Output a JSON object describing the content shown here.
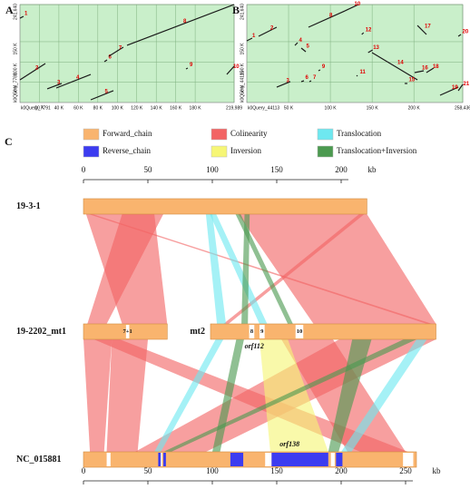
{
  "panels": [
    {
      "label": "A",
      "x_label": "k0Query_7791",
      "y_label": "k0Query_7788",
      "xlim": [
        0,
        219989
      ],
      "ylim": [
        0,
        241640
      ],
      "xticks": [
        {
          "value": 20000,
          "label": "20 K"
        },
        {
          "value": 40000,
          "label": "40 K"
        },
        {
          "value": 60000,
          "label": "60 K"
        },
        {
          "value": 80000,
          "label": "80 K"
        },
        {
          "value": 100000,
          "label": "100 K"
        },
        {
          "value": 120000,
          "label": "120 K"
        },
        {
          "value": 140000,
          "label": "140 K"
        },
        {
          "value": 160000,
          "label": "160 K"
        },
        {
          "value": 180000,
          "label": "180 K"
        },
        {
          "value": 219989,
          "label": "219,989"
        }
      ],
      "yticks": [
        {
          "value": 50000,
          "label": "50 K"
        },
        {
          "value": 100000,
          "label": "100 K"
        },
        {
          "value": 150000,
          "label": "150 K"
        },
        {
          "value": 241640,
          "label": "241,640"
        }
      ],
      "background": "#c9efca",
      "line_color": "#1a1a1a",
      "label_color": "#e00000",
      "segments": [
        {
          "label": "1",
          "x": [
            0,
            3700
          ],
          "y": [
            208000,
            212500
          ]
        },
        {
          "label": "2",
          "x": [
            0,
            26100
          ],
          "y": [
            55900,
            96200
          ]
        },
        {
          "label": "3",
          "x": [
            28000,
            42900
          ],
          "y": [
            33600,
            47000
          ]
        },
        {
          "label": "4",
          "x": [
            37300,
            72700
          ],
          "y": [
            35800,
            69300
          ]
        },
        {
          "label": "5",
          "x": [
            72700,
            96000
          ],
          "y": [
            6700,
            29100
          ]
        },
        {
          "label": "6",
          "x": [
            86700,
            89500
          ],
          "y": [
            100700,
            105100
          ]
        },
        {
          "label": "7",
          "x": [
            91300,
            106200
          ],
          "y": [
            114100,
            136500
          ]
        },
        {
          "label": "8",
          "x": [
            110000,
            219989
          ],
          "y": [
            141000,
            241640
          ]
        },
        {
          "label": "9",
          "x": [
            170600,
            172400
          ],
          "y": [
            82800,
            85000
          ]
        },
        {
          "label": "10",
          "x": [
            212500,
            219989
          ],
          "y": [
            69300,
            89500
          ]
        }
      ]
    },
    {
      "label": "B",
      "x_label": "k0Query_44113",
      "y_label": "k0Query_44115",
      "xlim": [
        0,
        258436
      ],
      "ylim": [
        0,
        241640
      ],
      "xticks": [
        {
          "value": 50000,
          "label": "50 K"
        },
        {
          "value": 100000,
          "label": "100 K"
        },
        {
          "value": 150000,
          "label": "150 K"
        },
        {
          "value": 200000,
          "label": "200 K"
        },
        {
          "value": 258436,
          "label": "258,436"
        }
      ],
      "yticks": [
        {
          "value": 50000,
          "label": "50 K"
        },
        {
          "value": 100000,
          "label": "100 K"
        },
        {
          "value": 150000,
          "label": "150 K"
        },
        {
          "value": 241640,
          "label": "241,640"
        }
      ],
      "background": "#c9efca",
      "line_color": "#1a1a1a",
      "label_color": "#e00000",
      "segments": [
        {
          "label": "1",
          "x": [
            0,
            6500
          ],
          "y": [
            152100,
            158900
          ]
        },
        {
          "label": "2",
          "x": [
            14100,
            35800
          ],
          "y": [
            163300,
            185700
          ]
        },
        {
          "label": "3",
          "x": [
            35800,
            52100
          ],
          "y": [
            38000,
            51500
          ]
        },
        {
          "label": "4",
          "x": [
            57600,
            60800
          ],
          "y": [
            140900,
            147700
          ]
        },
        {
          "label": "5",
          "x": [
            65200,
            70600
          ],
          "y": [
            134200,
            125300
          ]
        },
        {
          "label": "6",
          "x": [
            65200,
            68400
          ],
          "y": [
            51500,
            53700
          ]
        },
        {
          "label": "7",
          "x": [
            74900,
            77100
          ],
          "y": [
            51500,
            53700
          ]
        },
        {
          "label": "8",
          "x": [
            73800,
            117300
          ],
          "y": [
            185700,
            225900
          ]
        },
        {
          "label": "9",
          "x": [
            85700,
            87900
          ],
          "y": [
            78300,
            80500
          ]
        },
        {
          "label": "10",
          "x": [
            117300,
            133600
          ],
          "y": [
            225900,
            241600
          ]
        },
        {
          "label": "11",
          "x": [
            131400,
            132500
          ],
          "y": [
            64900,
            67100
          ]
        },
        {
          "label": "12",
          "x": [
            137600,
            139800
          ],
          "y": [
            167800,
            172300
          ]
        },
        {
          "label": "13",
          "x": [
            145200,
            150600
          ],
          "y": [
            123000,
            129700
          ]
        },
        {
          "label": "14",
          "x": [
            149900,
            204200
          ],
          "y": [
            123000,
            55900
          ]
        },
        {
          "label": "15",
          "x": [
            188900,
            192200
          ],
          "y": [
            47000,
            47000
          ]
        },
        {
          "label": "16",
          "x": [
            200900,
            211800
          ],
          "y": [
            73800,
            78300
          ]
        },
        {
          "label": "17",
          "x": [
            204200,
            215000
          ],
          "y": [
            190100,
            167800
          ]
        },
        {
          "label": "18",
          "x": [
            214900,
            223700
          ],
          "y": [
            73800,
            85000
          ]
        },
        {
          "label": "19",
          "x": [
            231300,
            253100
          ],
          "y": [
            17900,
            38000
          ]
        },
        {
          "label": "20",
          "x": [
            253100,
            256300
          ],
          "y": [
            163300,
            167800
          ]
        },
        {
          "label": "21",
          "x": [
            253100,
            258436
          ],
          "y": [
            29100,
            44700
          ]
        }
      ]
    }
  ],
  "synteny": {
    "label": "C",
    "legend": [
      {
        "name": "Forward_chain",
        "color": "#f9b46e"
      },
      {
        "name": "Colinearity",
        "color": "#f26464"
      },
      {
        "name": "Translocation",
        "color": "#6ee8f0"
      },
      {
        "name": "Reverse_chain",
        "color": "#3c3cf0"
      },
      {
        "name": "Inversion",
        "color": "#f6f676"
      },
      {
        "name": "Translocation+Inversion",
        "color": "#4c9a50"
      }
    ],
    "top_axis": {
      "ticks": [
        0,
        50,
        100,
        150,
        200
      ],
      "unit": "kb"
    },
    "bottom_axis": {
      "ticks": [
        0,
        50,
        100,
        150,
        200,
        250
      ],
      "unit": "kb"
    },
    "tracks": [
      {
        "parts": [
          {
            "name": "19-3-1",
            "length": 219.989,
            "features": [],
            "annotations": []
          }
        ]
      },
      {
        "parts": [
          {
            "name": "19-2202_mt1",
            "length": 65,
            "features": [
              {
                "range": [
                  33,
                  35.5
                ],
                "color": "#ffffff",
                "label": "7+1"
              }
            ],
            "annotations": []
          },
          {
            "name": "mt2",
            "length": 175,
            "features": [
              {
                "range": [
                  30,
                  34
                ],
                "color": "#ffffff",
                "label": "8"
              },
              {
                "range": [
                  38,
                  42
                ],
                "color": "#ffffff",
                "label": "9"
              },
              {
                "range": [
                  66,
                  72
                ],
                "color": "#ffffff",
                "label": "10"
              }
            ],
            "annotations": [
              {
                "text": "orf112",
                "position": 34
              }
            ]
          }
        ]
      },
      {
        "parts": [
          {
            "name": "NC_015881",
            "length": 258.436,
            "features": [
              {
                "range": [
                  18,
                  21
                ],
                "color": "#ffffff"
              },
              {
                "range": [
                  58,
                  60
                ],
                "color": "#3c3cf0"
              },
              {
                "range": [
                  60,
                  61
                ],
                "color": "#ffffff"
              },
              {
                "range": [
                  62,
                  64
                ],
                "color": "#3c3cf0"
              },
              {
                "range": [
                  114,
                  124
                ],
                "color": "#3c3cf0"
              },
              {
                "range": [
                  141,
                  146
                ],
                "color": "#ffffff"
              },
              {
                "range": [
                  146,
                  190
                ],
                "color": "#3c3cf0"
              },
              {
                "range": [
                  192,
                  195
                ],
                "color": "#ffffff"
              },
              {
                "range": [
                  196,
                  201
                ],
                "color": "#3c3cf0"
              },
              {
                "range": [
                  248,
                  256
                ],
                "color": "#ffffff"
              }
            ],
            "annotations": [
              {
                "text": "orf138",
                "position": 160
              }
            ]
          }
        ]
      }
    ],
    "links": [
      [
        {
          "color": "#f26464",
          "upper": {
            "part": 0,
            "range": [
              2,
              55
            ]
          },
          "lower": {
            "part": 0,
            "range": [
              30,
              65
            ]
          }
        },
        {
          "color": "#f26464",
          "upper": {
            "part": 0,
            "range": [
              30,
              62
            ]
          },
          "lower": {
            "part": 0,
            "range": [
              3,
              18
            ]
          }
        },
        {
          "color": "#f26464",
          "upper": {
            "part": 0,
            "range": [
              120,
              219.989
            ]
          },
          "lower": {
            "part": 1,
            "range": [
              80,
              175
            ]
          }
        },
        {
          "color": "#f26464",
          "upper": {
            "part": 0,
            "range": [
              4,
              7
            ]
          },
          "lower": {
            "part": 1,
            "range": [
              168,
              172
            ]
          }
        },
        {
          "color": "#f26464",
          "upper": {
            "part": 0,
            "range": [
              214,
              218
            ]
          },
          "lower": {
            "part": 1,
            "range": [
              10,
              14
            ]
          }
        },
        {
          "color": "#6ee8f0",
          "upper": {
            "part": 0,
            "range": [
              95,
              100
            ]
          },
          "lower": {
            "part": 1,
            "range": [
              5,
              12
            ]
          }
        },
        {
          "color": "#6ee8f0",
          "upper": {
            "part": 0,
            "range": [
              98,
              103
            ]
          },
          "lower": {
            "part": 1,
            "range": [
              38,
              44
            ]
          }
        },
        {
          "color": "#4c9a50",
          "upper": {
            "part": 0,
            "range": [
              125,
              129
            ]
          },
          "lower": {
            "part": 1,
            "range": [
              24,
              29
            ]
          }
        },
        {
          "color": "#4c9a50",
          "upper": {
            "part": 0,
            "range": [
              118,
              122
            ]
          },
          "lower": {
            "part": 1,
            "range": [
              60,
              64
            ]
          }
        }
      ],
      [
        {
          "color": "#f26464",
          "upper": {
            "part": 0,
            "range": [
              0,
              22
            ]
          },
          "lower": {
            "part": 0,
            "range": [
              5,
              16
            ]
          }
        },
        {
          "color": "#f26464",
          "upper": {
            "part": 0,
            "range": [
              22,
              50
            ]
          },
          "lower": {
            "part": 0,
            "range": [
              18,
              42
            ]
          }
        },
        {
          "color": "#f26464",
          "upper": {
            "part": 0,
            "range": [
              8,
              28
            ]
          },
          "lower": {
            "part": 0,
            "range": [
              215,
              252
            ]
          }
        },
        {
          "color": "#f26464",
          "upper": {
            "part": 1,
            "range": [
              100,
              175
            ]
          },
          "lower": {
            "part": 0,
            "range": [
              40,
              95
            ]
          }
        },
        {
          "color": "#f26464",
          "upper": {
            "part": 1,
            "range": [
              55,
              95
            ]
          },
          "lower": {
            "part": 0,
            "range": [
              205,
              250
            ]
          }
        },
        {
          "color": "#f6f676",
          "upper": {
            "part": 1,
            "range": [
              38,
              60
            ]
          },
          "lower": {
            "part": 0,
            "range": [
              145,
              190
            ]
          }
        },
        {
          "color": "#4c9a50",
          "upper": {
            "part": 1,
            "range": [
              110,
              125
            ]
          },
          "lower": {
            "part": 0,
            "range": [
              190,
              198
            ]
          }
        },
        {
          "color": "#4c9a50",
          "upper": {
            "part": 1,
            "range": [
              150,
              160
            ]
          },
          "lower": {
            "part": 0,
            "range": [
              62,
              68
            ]
          }
        },
        {
          "color": "#6ee8f0",
          "upper": {
            "part": 1,
            "range": [
              4,
              10
            ]
          },
          "lower": {
            "part": 0,
            "range": [
              55,
              60
            ]
          }
        },
        {
          "color": "#6ee8f0",
          "upper": {
            "part": 1,
            "range": [
              160,
              168
            ]
          },
          "lower": {
            "part": 0,
            "range": [
              200,
              208
            ]
          }
        },
        {
          "color": "#4c9a50",
          "upper": {
            "part": 1,
            "range": [
              20,
              26
            ]
          },
          "lower": {
            "part": 0,
            "range": [
              100,
              106
            ]
          }
        }
      ]
    ]
  }
}
